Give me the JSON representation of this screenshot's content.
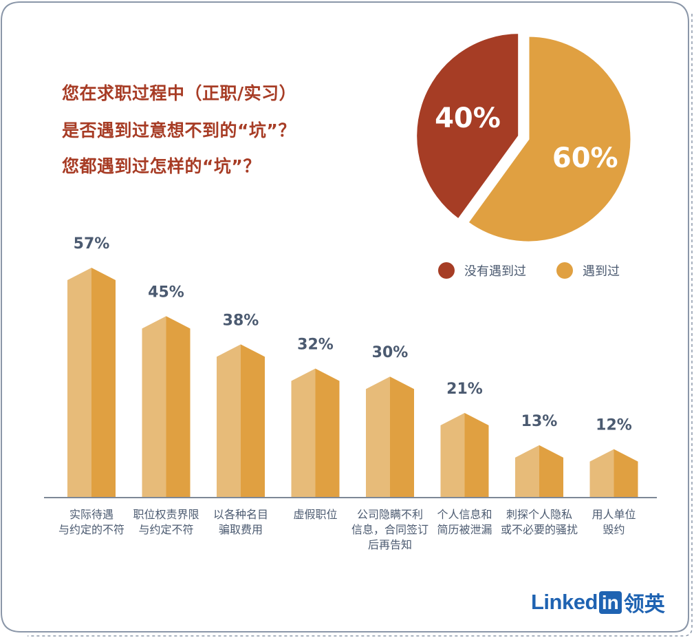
{
  "title_lines": [
    "您在求职过程中（正职/实习）",
    "是否遇到过意想不到的“坑”？",
    "您都遇到过怎样的“坑”？"
  ],
  "legend": [
    {
      "label": "没有遇到过",
      "color": "#A63D25"
    },
    {
      "label": "遇到过",
      "color": "#E0A041"
    }
  ],
  "logo": {
    "word": "Linked",
    "in": "in",
    "cn": "领英"
  },
  "colors": {
    "title": "#A73C25",
    "bar_light": "#E7BB79",
    "bar_dark": "#E0A041",
    "axis": "#7D8796",
    "label": "#4B5A70"
  },
  "chart_data": [
    {
      "type": "pie",
      "slices": [
        {
          "label": "没有遇到过",
          "value": 40,
          "display": "40%"
        },
        {
          "label": "遇到过",
          "value": 60,
          "display": "60%"
        }
      ]
    },
    {
      "type": "bar",
      "categories": [
        [
          "实际待遇",
          "与约定的不符"
        ],
        [
          "职位权责界限",
          "与约定不符"
        ],
        [
          "以各种名目",
          "骗取费用"
        ],
        [
          "虚假职位"
        ],
        [
          "公司隐瞒不利",
          "信息，合同签订",
          "后再告知"
        ],
        [
          "个人信息和",
          "简历被泄漏"
        ],
        [
          "刺探个人隐私",
          "或不必要的骚扰"
        ],
        [
          "用人单位",
          "毁约"
        ]
      ],
      "values": [
        57,
        45,
        38,
        32,
        30,
        21,
        13,
        12
      ],
      "value_labels": [
        "57%",
        "45%",
        "38%",
        "32%",
        "30%",
        "21%",
        "13%",
        "12%"
      ],
      "ylim": [
        0,
        60
      ],
      "grid": false
    }
  ]
}
